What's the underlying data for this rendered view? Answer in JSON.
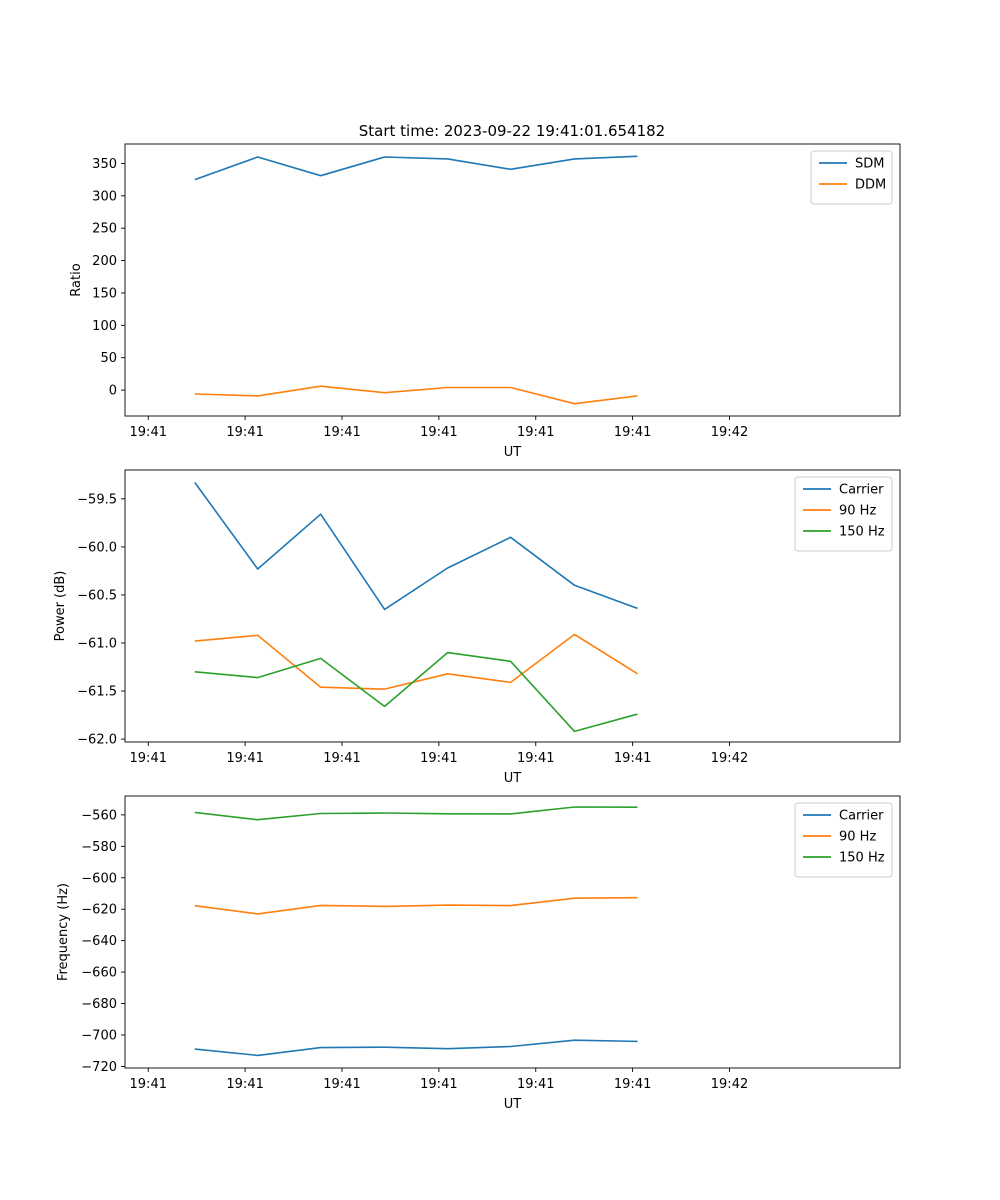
{
  "title": "Start time: 2023-09-22 19:41:01.654182",
  "colors": {
    "c0": "#1f77b4",
    "c1": "#ff7f0e",
    "c2": "#2ca02c",
    "axis": "#000000"
  },
  "chart_data": [
    {
      "type": "line",
      "xlabel": "UT",
      "ylabel": "Ratio",
      "xlim": [
        0.0,
        8.0
      ],
      "ylim": [
        -40,
        380
      ],
      "yticks": [
        0,
        50,
        100,
        150,
        200,
        250,
        300,
        350
      ],
      "xticks": [
        0.24,
        1.24,
        2.24,
        3.24,
        4.24,
        5.24,
        6.24
      ],
      "xtick_labels": [
        "19:41",
        "19:41",
        "19:41",
        "19:41",
        "19:41",
        "19:41",
        "19:42"
      ],
      "legend": "top-right",
      "x": [
        0.72,
        1.37,
        2.02,
        2.68,
        3.33,
        3.98,
        4.64,
        5.29
      ],
      "series": [
        {
          "name": "SDM",
          "values": [
            325,
            360,
            331,
            360,
            357,
            341,
            357,
            361
          ]
        },
        {
          "name": "DDM",
          "values": [
            -6,
            -9,
            6,
            -4,
            4,
            4,
            -21,
            -9
          ]
        }
      ]
    },
    {
      "type": "line",
      "xlabel": "UT",
      "ylabel": "Power (dB)",
      "xlim": [
        0.0,
        8.0
      ],
      "ylim": [
        -62.03,
        -59.2
      ],
      "yticks": [
        -62.0,
        -61.5,
        -61.0,
        -60.5,
        -60.0,
        -59.5
      ],
      "ytick_labels": [
        "−62.0",
        "−61.5",
        "−61.0",
        "−60.5",
        "−60.0",
        "−59.5"
      ],
      "xticks": [
        0.24,
        1.24,
        2.24,
        3.24,
        4.24,
        5.24,
        6.24
      ],
      "xtick_labels": [
        "19:41",
        "19:41",
        "19:41",
        "19:41",
        "19:41",
        "19:41",
        "19:42"
      ],
      "legend": "top-right",
      "x": [
        0.72,
        1.37,
        2.02,
        2.68,
        3.33,
        3.98,
        4.64,
        5.29
      ],
      "series": [
        {
          "name": "Carrier",
          "values": [
            -59.33,
            -60.23,
            -59.66,
            -60.65,
            -60.22,
            -59.9,
            -60.4,
            -60.64
          ]
        },
        {
          "name": "90 Hz",
          "values": [
            -60.98,
            -60.92,
            -61.46,
            -61.48,
            -61.32,
            -61.41,
            -60.91,
            -61.32
          ]
        },
        {
          "name": "150 Hz",
          "values": [
            -61.3,
            -61.36,
            -61.16,
            -61.66,
            -61.1,
            -61.19,
            -61.92,
            -61.74
          ]
        }
      ]
    },
    {
      "type": "line",
      "xlabel": "UT",
      "ylabel": "Frequency (Hz)",
      "xlim": [
        0.0,
        8.0
      ],
      "ylim": [
        -721,
        -548
      ],
      "yticks": [
        -720,
        -700,
        -680,
        -660,
        -640,
        -620,
        -600,
        -580,
        -560
      ],
      "ytick_labels": [
        "−720",
        "−700",
        "−680",
        "−660",
        "−640",
        "−620",
        "−600",
        "−580",
        "−560"
      ],
      "xticks": [
        0.24,
        1.24,
        2.24,
        3.24,
        4.24,
        5.24,
        6.24
      ],
      "xtick_labels": [
        "19:41",
        "19:41",
        "19:41",
        "19:41",
        "19:41",
        "19:41",
        "19:42"
      ],
      "legend": "top-right",
      "x": [
        0.72,
        1.37,
        2.02,
        2.68,
        3.33,
        3.98,
        4.64,
        5.29
      ],
      "series": [
        {
          "name": "Carrier",
          "values": [
            -709,
            -713,
            -708,
            -707.8,
            -708.7,
            -707.3,
            -703.3,
            -704.1
          ]
        },
        {
          "name": "90 Hz",
          "values": [
            -617.8,
            -623,
            -617.6,
            -618.2,
            -617.4,
            -617.7,
            -613,
            -612.7
          ]
        },
        {
          "name": "150 Hz",
          "values": [
            -558.4,
            -563.1,
            -559.1,
            -558.8,
            -559.3,
            -559.4,
            -555,
            -555.1
          ]
        }
      ]
    }
  ]
}
